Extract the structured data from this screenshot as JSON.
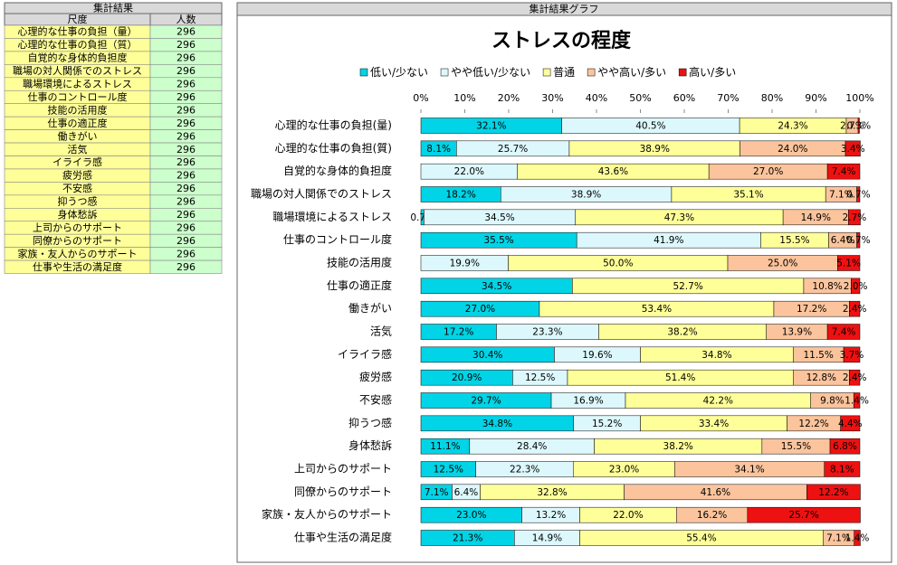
{
  "table": {
    "title": "集計結果",
    "columns": [
      "尺度",
      "人数"
    ],
    "rows": [
      [
        "心理的な仕事の負担（量）",
        296
      ],
      [
        "心理的な仕事の負担（質）",
        296
      ],
      [
        "自覚的な身体的負担度",
        296
      ],
      [
        "職場の対人関係でのストレス",
        296
      ],
      [
        "職場環境によるストレス",
        296
      ],
      [
        "仕事のコントロール度",
        296
      ],
      [
        "技能の活用度",
        296
      ],
      [
        "仕事の適正度",
        296
      ],
      [
        "働きがい",
        296
      ],
      [
        "活気",
        296
      ],
      [
        "イライラ感",
        296
      ],
      [
        "疲労感",
        296
      ],
      [
        "不安感",
        296
      ],
      [
        "抑うつ感",
        296
      ],
      [
        "身体愁訴",
        296
      ],
      [
        "上司からのサポート",
        296
      ],
      [
        "同僚からのサポート",
        296
      ],
      [
        "家族・友人からのサポート",
        296
      ],
      [
        "仕事や生活の満足度",
        296
      ]
    ]
  },
  "panel_title": "集計結果グラフ",
  "chart_data": {
    "type": "bar",
    "orientation": "horizontal",
    "stacked": true,
    "title": "ストレスの程度",
    "categories": [
      "心理的な仕事の負担(量)",
      "心理的な仕事の負担(質)",
      "自覚的な身体的負担度",
      "職場の対人関係でのストレス",
      "職場環境によるストレス",
      "仕事のコントロール度",
      "技能の活用度",
      "仕事の適正度",
      "働きがい",
      "活気",
      "イライラ感",
      "疲労感",
      "不安感",
      "抑うつ感",
      "身体愁訴",
      "上司からのサポート",
      "同僚からのサポート",
      "家族・友人からのサポート",
      "仕事や生活の満足度"
    ],
    "series": [
      {
        "name": "低い/少ない",
        "color": "#00d4e6",
        "values": [
          32.1,
          8.1,
          null,
          18.2,
          0.7,
          35.5,
          null,
          34.5,
          27.0,
          17.2,
          30.4,
          20.9,
          29.7,
          34.8,
          11.1,
          12.5,
          7.1,
          23.0,
          21.3
        ],
        "value_labels": [
          "32.1%",
          "8.1%",
          null,
          "18.2%",
          "0.7%",
          "35.5%",
          null,
          "34.5%",
          "27.0%",
          "17.2%",
          "30.4%",
          "20.9%",
          "29.7%",
          "34.8%",
          "11.1%",
          "12.5%",
          "7.1%",
          "23.0%",
          "21.3%"
        ]
      },
      {
        "name": "やや低い/少ない",
        "color": "#ddf8fc",
        "values": [
          40.5,
          25.7,
          22.0,
          38.9,
          34.5,
          41.9,
          19.9,
          null,
          null,
          23.3,
          19.6,
          12.5,
          16.9,
          15.2,
          28.4,
          22.3,
          6.4,
          13.2,
          14.9
        ],
        "value_labels": [
          "40.5%",
          "25.7%",
          "22.0%",
          "38.9%",
          "34.5%",
          "41.9%",
          "19.9%",
          null,
          null,
          "23.3%",
          "19.6%",
          "12.5%",
          "16.9%",
          "15.2%",
          "28.4%",
          "22.3%",
          "6.4%",
          "13.2%",
          "14.9%"
        ]
      },
      {
        "name": "普通",
        "color": "#ffff99",
        "values": [
          24.3,
          38.9,
          43.6,
          35.1,
          47.3,
          15.5,
          50.0,
          52.7,
          53.4,
          38.2,
          34.8,
          51.4,
          42.2,
          33.4,
          38.2,
          23.0,
          32.8,
          22.0,
          55.4
        ],
        "value_labels": [
          "24.3%",
          "38.9%",
          "43.6%",
          "35.1%",
          "47.3%",
          "15.5%",
          "50.0%",
          "52.7%",
          "53.4%",
          "38.2%",
          "34.8%",
          "51.4%",
          "42.2%",
          "33.4%",
          "38.2%",
          "23.0%",
          "32.8%",
          "22.0%",
          "55.4%"
        ]
      },
      {
        "name": "やや高い/多い",
        "color": "#fbc49c",
        "values": [
          2.7,
          24.0,
          27.0,
          7.1,
          14.9,
          6.4,
          25.0,
          10.8,
          17.2,
          13.9,
          11.5,
          12.8,
          9.8,
          12.2,
          15.5,
          34.1,
          41.6,
          16.2,
          7.1
        ],
        "value_labels": [
          "2.7%",
          "24.0%",
          "27.0%",
          "7.1%",
          "14.9%",
          "6.4%",
          "25.0%",
          "10.8%",
          "17.2%",
          "13.9%",
          "11.5%",
          "12.8%",
          "9.8%",
          "12.2%",
          "15.5%",
          "34.1%",
          "41.6%",
          "16.2%",
          "7.1%"
        ]
      },
      {
        "name": "高い/多い",
        "color": "#ee1111",
        "values": [
          0.3,
          3.4,
          7.4,
          0.7,
          2.7,
          0.7,
          5.1,
          2.0,
          2.4,
          7.4,
          3.7,
          2.4,
          1.4,
          4.4,
          6.8,
          8.1,
          12.2,
          25.7,
          1.4
        ],
        "value_labels": [
          "0.3%",
          "3.4%",
          "7.4%",
          "0.7%",
          "2.7%",
          "0.7%",
          "5.1%",
          "2.0%",
          "2.4%",
          "7.4%",
          "3.7%",
          "2.4%",
          "1.4%",
          "4.4%",
          "6.8%",
          "8.1%",
          "12.2%",
          "25.7%",
          "1.4%"
        ]
      }
    ],
    "xlim": [
      0,
      100
    ],
    "xticks": [
      {
        "value": 0,
        "label": "0%"
      },
      {
        "value": 10,
        "label": "10%"
      },
      {
        "value": 20,
        "label": "20%"
      },
      {
        "value": 30,
        "label": "30%"
      },
      {
        "value": 40,
        "label": "40%"
      },
      {
        "value": 50,
        "label": "50%"
      },
      {
        "value": 60,
        "label": "60%"
      },
      {
        "value": 70,
        "label": "70%"
      },
      {
        "value": 80,
        "label": "80%"
      },
      {
        "value": 90,
        "label": "90%"
      },
      {
        "value": 100,
        "label": "100%"
      }
    ],
    "legend": "top"
  }
}
